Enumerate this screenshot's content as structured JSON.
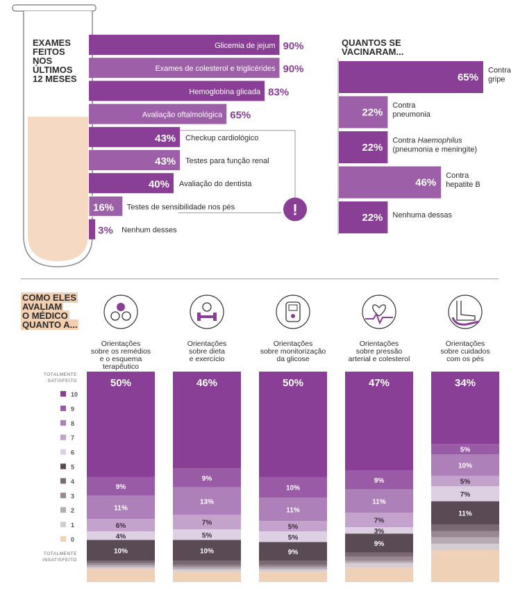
{
  "colors": {
    "purple": "#8a3f96",
    "purple_mid": "#9c5fa8",
    "peach": "#f2cfb1",
    "scale": {
      "10": "#8a3f96",
      "9": "#9a5ba6",
      "8": "#ae80b9",
      "7": "#c3a3cc",
      "6": "#ddd0e3",
      "5": "#5a4a54",
      "4": "#7a6872",
      "3": "#978891",
      "2": "#b6abb2",
      "1": "#d4ccd1",
      "0": "#eed1b7"
    }
  },
  "exams": {
    "title_lines": [
      "EXAMES",
      "FEITOS",
      "NOS",
      "ÚLTIMOS",
      "12 MESES"
    ],
    "items": [
      {
        "label": "Glicemia de jejum",
        "pct_label": "90%",
        "value": 90
      },
      {
        "label": "Exames de colesterol e triglicérides",
        "pct_label": "90%",
        "value": 90
      },
      {
        "label": "Hemoglobina glicada",
        "pct_label": "83%",
        "value": 83
      },
      {
        "label": "Avaliação oftalmológica",
        "pct_label": "65%",
        "value": 65
      },
      {
        "label": "Checkup cardiológico",
        "pct_label": "43%",
        "value": 43
      },
      {
        "label": "Testes para função renal",
        "pct_label": "43%",
        "value": 43
      },
      {
        "label": "Avaliação do dentista",
        "pct_label": "40%",
        "value": 40
      },
      {
        "label": "Testes de sensibilidade nos pés",
        "pct_label": "16%",
        "value": 16
      },
      {
        "label": "Nenhum desses",
        "pct_label": "3%",
        "value": 3
      }
    ],
    "alert_icon": "exclamation-icon",
    "alert_symbol": "!"
  },
  "vaccines": {
    "title_lines": [
      "QUANTOS SE",
      "VACINARAM..."
    ],
    "items": [
      {
        "label_lines": [
          "Contra",
          "gripe"
        ],
        "pct_label": "65%",
        "value": 65
      },
      {
        "label_lines": [
          "Contra",
          "pneumonia"
        ],
        "pct_label": "22%",
        "value": 22
      },
      {
        "label_lines": [
          "Contra Haemophilus",
          "(pneumonia e meningite)"
        ],
        "italic_word": "Haemophilus",
        "pct_label": "22%",
        "value": 22
      },
      {
        "label_lines": [
          "Contra",
          "hepatite B"
        ],
        "pct_label": "46%",
        "value": 46
      },
      {
        "label_lines": [
          "Nenhuma dessas"
        ],
        "pct_label": "22%",
        "value": 22
      }
    ]
  },
  "rating": {
    "title_lines": [
      "COMO ELES",
      "AVALIAM",
      "O MÉDICO",
      "QUANTO A..."
    ],
    "scale_top": [
      "TOTALMENTE",
      "SATISFEITO"
    ],
    "scale_bottom": [
      "TOTALMENTE",
      "INSATISFEITO"
    ],
    "scale_levels": [
      "10",
      "9",
      "8",
      "7",
      "6",
      "5",
      "4",
      "3",
      "2",
      "1",
      "0"
    ],
    "columns": [
      {
        "icon": "pills-icon",
        "label_lines": [
          "Orientações",
          "sobre os remédios",
          "e o esquema",
          "terapêutico"
        ],
        "segments": [
          {
            "level": "10",
            "value": 50,
            "label": "50%"
          },
          {
            "level": "9",
            "value": 9,
            "label": "9%"
          },
          {
            "level": "8",
            "value": 11,
            "label": "11%"
          },
          {
            "level": "7",
            "value": 6,
            "label": "6%"
          },
          {
            "level": "6",
            "value": 4,
            "label": "4%"
          },
          {
            "level": "5",
            "value": 10,
            "label": "10%"
          },
          {
            "level": "4",
            "value": 1,
            "label": ""
          },
          {
            "level": "3",
            "value": 1,
            "label": ""
          },
          {
            "level": "2",
            "value": 1,
            "label": ""
          },
          {
            "level": "1",
            "value": 1,
            "label": ""
          },
          {
            "level": "0",
            "value": 6,
            "label": ""
          }
        ]
      },
      {
        "icon": "diet-exercise-icon",
        "label_lines": [
          "Orientações",
          "sobre dieta",
          "e exercício"
        ],
        "segments": [
          {
            "level": "10",
            "value": 46,
            "label": "46%"
          },
          {
            "level": "9",
            "value": 9,
            "label": "9%"
          },
          {
            "level": "8",
            "value": 13,
            "label": "13%"
          },
          {
            "level": "7",
            "value": 7,
            "label": "7%"
          },
          {
            "level": "6",
            "value": 5,
            "label": "5%"
          },
          {
            "level": "5",
            "value": 10,
            "label": "10%"
          },
          {
            "level": "4",
            "value": 2,
            "label": ""
          },
          {
            "level": "3",
            "value": 1,
            "label": ""
          },
          {
            "level": "2",
            "value": 1,
            "label": ""
          },
          {
            "level": "1",
            "value": 1,
            "label": ""
          },
          {
            "level": "0",
            "value": 5,
            "label": ""
          }
        ]
      },
      {
        "icon": "glucose-meter-icon",
        "label_lines": [
          "Orientações",
          "sobre monitorização",
          "da glicose"
        ],
        "segments": [
          {
            "level": "10",
            "value": 50,
            "label": "50%"
          },
          {
            "level": "9",
            "value": 10,
            "label": "10%"
          },
          {
            "level": "8",
            "value": 11,
            "label": "11%"
          },
          {
            "level": "7",
            "value": 5,
            "label": "5%"
          },
          {
            "level": "6",
            "value": 5,
            "label": "5%"
          },
          {
            "level": "5",
            "value": 9,
            "label": "9%"
          },
          {
            "level": "4",
            "value": 2,
            "label": ""
          },
          {
            "level": "3",
            "value": 1,
            "label": ""
          },
          {
            "level": "2",
            "value": 1,
            "label": ""
          },
          {
            "level": "1",
            "value": 1,
            "label": ""
          },
          {
            "level": "0",
            "value": 5,
            "label": ""
          }
        ]
      },
      {
        "icon": "heart-pressure-icon",
        "label_lines": [
          "Orientações",
          "sobre pressão",
          "arterial e colesterol"
        ],
        "segments": [
          {
            "level": "10",
            "value": 47,
            "label": "47%"
          },
          {
            "level": "9",
            "value": 9,
            "label": "9%"
          },
          {
            "level": "8",
            "value": 11,
            "label": "11%"
          },
          {
            "level": "7",
            "value": 7,
            "label": "7%"
          },
          {
            "level": "6",
            "value": 3,
            "label": "3%"
          },
          {
            "level": "5",
            "value": 9,
            "label": "9%"
          },
          {
            "level": "4",
            "value": 2,
            "label": ""
          },
          {
            "level": "3",
            "value": 2,
            "label": ""
          },
          {
            "level": "2",
            "value": 1,
            "label": ""
          },
          {
            "level": "1",
            "value": 2,
            "label": ""
          },
          {
            "level": "0",
            "value": 7,
            "label": ""
          }
        ]
      },
      {
        "icon": "foot-care-icon",
        "label_lines": [
          "Orientações",
          "sobre cuidados",
          "com os pés"
        ],
        "segments": [
          {
            "level": "10",
            "value": 34,
            "label": "34%"
          },
          {
            "level": "9",
            "value": 5,
            "label": "5%"
          },
          {
            "level": "8",
            "value": 10,
            "label": "10%"
          },
          {
            "level": "7",
            "value": 5,
            "label": "5%"
          },
          {
            "level": "6",
            "value": 7,
            "label": "7%"
          },
          {
            "level": "5",
            "value": 11,
            "label": "11%"
          },
          {
            "level": "4",
            "value": 3,
            "label": ""
          },
          {
            "level": "3",
            "value": 3,
            "label": ""
          },
          {
            "level": "2",
            "value": 3,
            "label": ""
          },
          {
            "level": "1",
            "value": 3,
            "label": ""
          },
          {
            "level": "0",
            "value": 15,
            "label": ""
          }
        ]
      }
    ]
  },
  "chart_data": [
    {
      "type": "bar",
      "title": "EXAMES FEITOS NOS ÚLTIMOS 12 MESES",
      "categories": [
        "Glicemia de jejum",
        "Exames de colesterol e triglicérides",
        "Hemoglobina glicada",
        "Avaliação oftalmológica",
        "Checkup cardiológico",
        "Testes para função renal",
        "Avaliação do dentista",
        "Testes de sensibilidade nos pés",
        "Nenhum desses"
      ],
      "values": [
        90,
        90,
        83,
        65,
        43,
        43,
        40,
        16,
        3
      ],
      "orientation": "horizontal",
      "xlim": [
        0,
        100
      ]
    },
    {
      "type": "bar",
      "title": "QUANTOS SE VACINARAM...",
      "categories": [
        "Contra gripe",
        "Contra pneumonia",
        "Contra Haemophilus (pneumonia e meningite)",
        "Contra hepatite B",
        "Nenhuma dessas"
      ],
      "values": [
        65,
        22,
        22,
        46,
        22
      ],
      "orientation": "horizontal",
      "xlim": [
        0,
        100
      ]
    },
    {
      "type": "bar",
      "stacked": true,
      "title": "COMO ELES AVALIAM O MÉDICO QUANTO A...",
      "categories": [
        "Orientações sobre os remédios e o esquema terapêutico",
        "Orientações sobre dieta e exercício",
        "Orientações sobre monitorização da glicose",
        "Orientações sobre pressão arterial e colesterol",
        "Orientações sobre cuidados com os pés"
      ],
      "series": [
        {
          "name": "10",
          "values": [
            50,
            46,
            50,
            47,
            34
          ]
        },
        {
          "name": "9",
          "values": [
            9,
            9,
            10,
            9,
            5
          ]
        },
        {
          "name": "8",
          "values": [
            11,
            13,
            11,
            11,
            10
          ]
        },
        {
          "name": "7",
          "values": [
            6,
            7,
            5,
            7,
            5
          ]
        },
        {
          "name": "6",
          "values": [
            4,
            5,
            5,
            3,
            7
          ]
        },
        {
          "name": "5",
          "values": [
            10,
            10,
            9,
            9,
            11
          ]
        }
      ],
      "legend": "left"
    }
  ]
}
